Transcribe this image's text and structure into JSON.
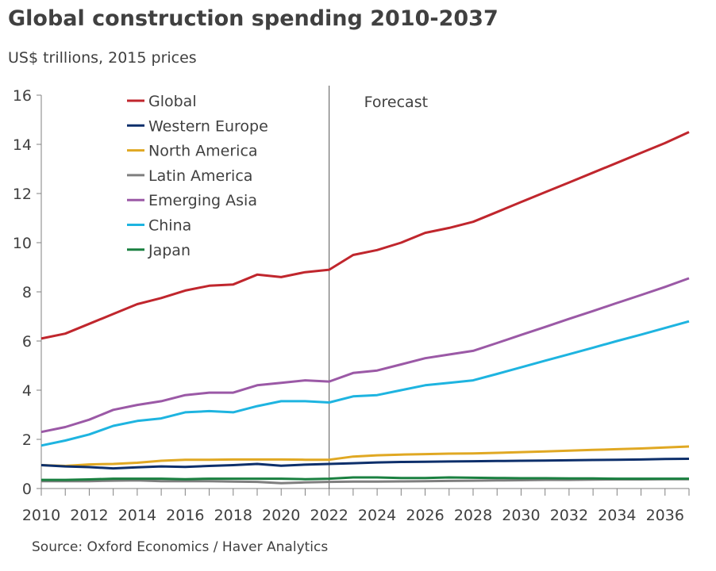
{
  "chart_data": {
    "type": "line",
    "title": "Global construction spending 2010-2037",
    "subtitle": "US$ trillions, 2015 prices",
    "source": "Source: Oxford Economics / Haver Analytics",
    "annotation": "Forecast",
    "forecast_start": 2022,
    "x": [
      2010,
      2011,
      2012,
      2013,
      2014,
      2015,
      2016,
      2017,
      2018,
      2019,
      2020,
      2021,
      2022,
      2023,
      2024,
      2025,
      2026,
      2027,
      2028,
      2029,
      2030,
      2031,
      2032,
      2033,
      2034,
      2035,
      2036,
      2037
    ],
    "xlim": [
      2010,
      2037
    ],
    "ylim": [
      0,
      16
    ],
    "x_ticks": [
      "2010",
      "2012",
      "2014",
      "2016",
      "2018",
      "2020",
      "2022",
      "2024",
      "2026",
      "2028",
      "2030",
      "2032",
      "2034",
      "2036"
    ],
    "y_ticks": [
      "0",
      "2",
      "4",
      "6",
      "8",
      "10",
      "12",
      "14",
      "16"
    ],
    "grid": false,
    "legend_position": "top-left",
    "series": [
      {
        "name": "Global",
        "color": "#c0262d",
        "values": [
          6.1,
          6.3,
          6.7,
          7.1,
          7.5,
          7.75,
          8.05,
          8.25,
          8.3,
          8.7,
          8.6,
          8.8,
          8.9,
          9.5,
          9.7,
          10.0,
          10.4,
          10.6,
          10.85,
          11.25,
          11.65,
          12.05,
          12.45,
          12.85,
          13.25,
          13.65,
          14.05,
          14.5
        ]
      },
      {
        "name": "Western Europe",
        "color": "#0d2f6b",
        "values": [
          0.95,
          0.9,
          0.87,
          0.82,
          0.86,
          0.9,
          0.88,
          0.92,
          0.95,
          1.0,
          0.93,
          0.97,
          1.0,
          1.03,
          1.06,
          1.08,
          1.09,
          1.1,
          1.11,
          1.12,
          1.13,
          1.14,
          1.15,
          1.16,
          1.17,
          1.18,
          1.2,
          1.21
        ]
      },
      {
        "name": "North America",
        "color": "#e0a823",
        "values": [
          0.95,
          0.92,
          0.98,
          1.0,
          1.05,
          1.13,
          1.17,
          1.17,
          1.18,
          1.18,
          1.18,
          1.17,
          1.17,
          1.3,
          1.35,
          1.38,
          1.4,
          1.42,
          1.43,
          1.45,
          1.48,
          1.51,
          1.54,
          1.57,
          1.6,
          1.63,
          1.67,
          1.71
        ]
      },
      {
        "name": "Latin America",
        "color": "#7f7f7f",
        "values": [
          0.3,
          0.3,
          0.3,
          0.32,
          0.33,
          0.3,
          0.3,
          0.3,
          0.28,
          0.27,
          0.22,
          0.25,
          0.27,
          0.28,
          0.28,
          0.29,
          0.3,
          0.31,
          0.32,
          0.33,
          0.34,
          0.35,
          0.35,
          0.36,
          0.37,
          0.37,
          0.38,
          0.38
        ]
      },
      {
        "name": "Emerging Asia",
        "color": "#9b59a6",
        "values": [
          2.3,
          2.5,
          2.8,
          3.2,
          3.4,
          3.55,
          3.8,
          3.9,
          3.9,
          4.2,
          4.3,
          4.4,
          4.35,
          4.7,
          4.8,
          5.05,
          5.3,
          5.45,
          5.6,
          5.92,
          6.25,
          6.57,
          6.9,
          7.22,
          7.55,
          7.87,
          8.2,
          8.55
        ]
      },
      {
        "name": "China",
        "color": "#1eb4e0",
        "values": [
          1.75,
          1.95,
          2.2,
          2.55,
          2.75,
          2.85,
          3.1,
          3.15,
          3.1,
          3.35,
          3.55,
          3.55,
          3.5,
          3.75,
          3.8,
          4.0,
          4.2,
          4.3,
          4.4,
          4.66,
          4.93,
          5.2,
          5.46,
          5.73,
          6.0,
          6.26,
          6.53,
          6.8
        ]
      },
      {
        "name": "Japan",
        "color": "#1a8040",
        "values": [
          0.35,
          0.35,
          0.37,
          0.4,
          0.4,
          0.4,
          0.38,
          0.4,
          0.4,
          0.4,
          0.4,
          0.38,
          0.4,
          0.45,
          0.45,
          0.43,
          0.43,
          0.45,
          0.44,
          0.43,
          0.42,
          0.42,
          0.41,
          0.41,
          0.4,
          0.4,
          0.4,
          0.4
        ]
      }
    ]
  }
}
